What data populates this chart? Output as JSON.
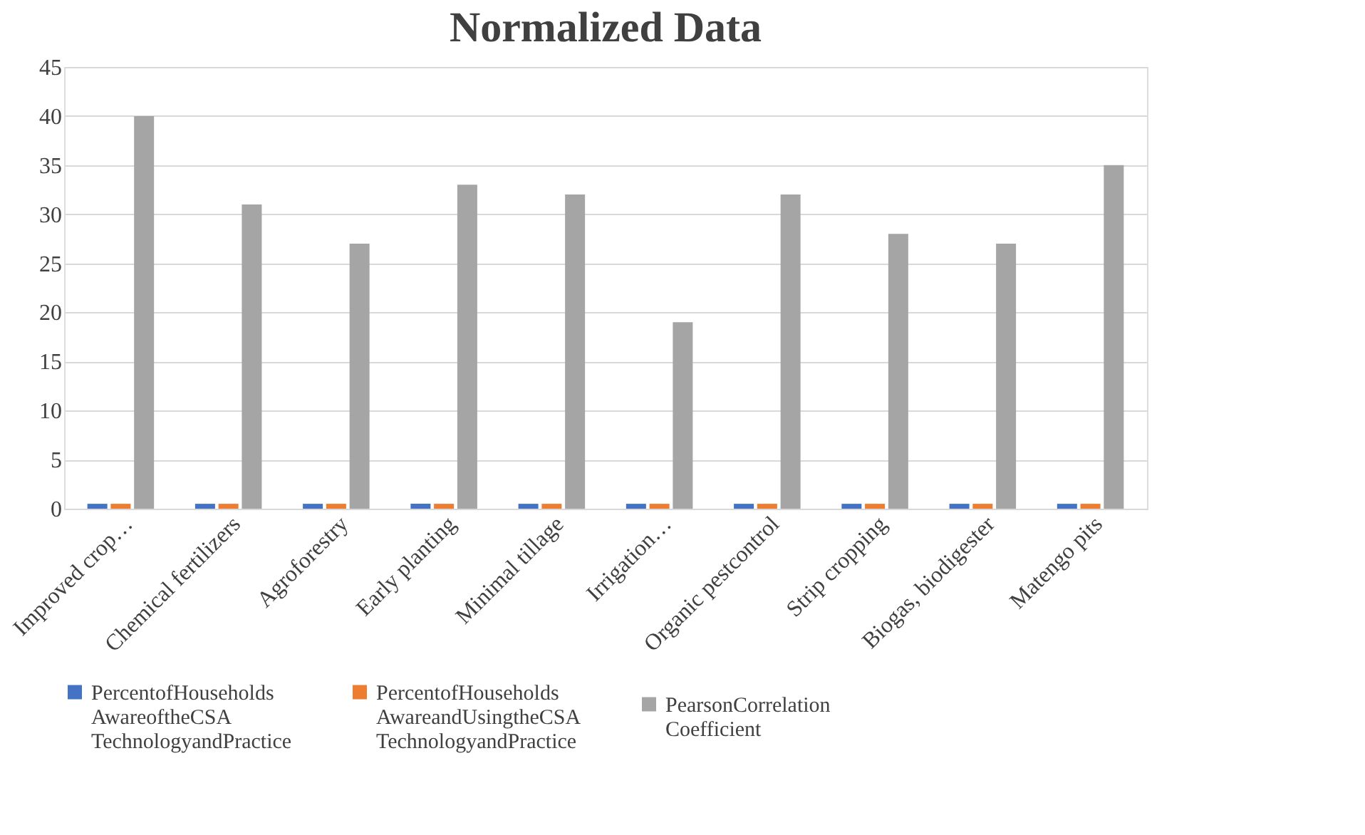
{
  "chart_data": {
    "type": "bar",
    "title": "Normalized Data",
    "categories": [
      "Improved crop…",
      "Chemical fertilizers",
      "Agroforestry",
      "Early planting",
      "Minimal tillage",
      "Irrigation…",
      "Organic pestcontrol",
      "Strip cropping",
      "Biogas, biodigester",
      "Matengo pits"
    ],
    "series": [
      {
        "name": "PercentofHouseholds AwareoftheCSA TechnologyandPractice",
        "color": "#4472c4",
        "values": [
          0.5,
          0.5,
          0.5,
          0.5,
          0.5,
          0.5,
          0.5,
          0.5,
          0.5,
          0.5
        ]
      },
      {
        "name": "PercentofHouseholds AwareandUsingtheCSA TechnologyandPractice",
        "color": "#ed7d31",
        "values": [
          0.5,
          0.5,
          0.5,
          0.5,
          0.5,
          0.5,
          0.5,
          0.5,
          0.5,
          0.5
        ]
      },
      {
        "name": "PearsonCorrelation Coefficient",
        "color": "#a5a5a5",
        "values": [
          40,
          31,
          27,
          33,
          32,
          19,
          32,
          28,
          27,
          35
        ]
      }
    ],
    "ylim": [
      0,
      45
    ],
    "yticks": [
      0,
      5,
      10,
      15,
      20,
      25,
      30,
      35,
      40,
      45
    ],
    "grid": "y",
    "legend": "bottom"
  }
}
